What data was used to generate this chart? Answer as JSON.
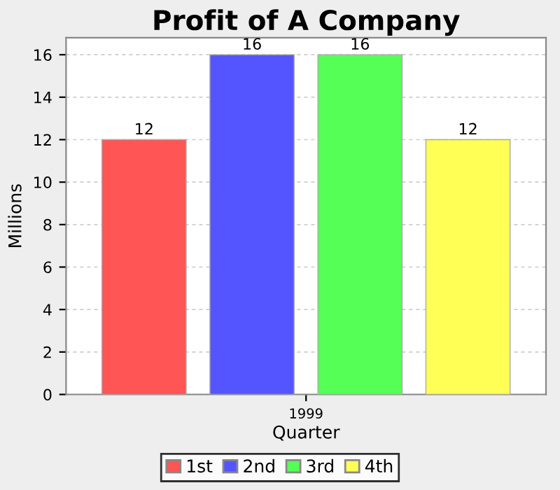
{
  "chart_data": {
    "type": "bar",
    "title": "Profit of A Company",
    "xlabel": "Quarter",
    "ylabel": "Millions",
    "categories": [
      "1999"
    ],
    "series": [
      {
        "name": "1st",
        "color": "#ff5555",
        "values": [
          12
        ]
      },
      {
        "name": "2nd",
        "color": "#5555ff",
        "values": [
          16
        ]
      },
      {
        "name": "3rd",
        "color": "#55ff55",
        "values": [
          16
        ]
      },
      {
        "name": "4th",
        "color": "#ffff55",
        "values": [
          12
        ]
      }
    ],
    "ylim": [
      0,
      16.8
    ],
    "yticks": [
      0,
      2,
      4,
      6,
      8,
      10,
      12,
      14,
      16
    ],
    "grid": "y",
    "legend": "bottom",
    "data_labels": true
  }
}
